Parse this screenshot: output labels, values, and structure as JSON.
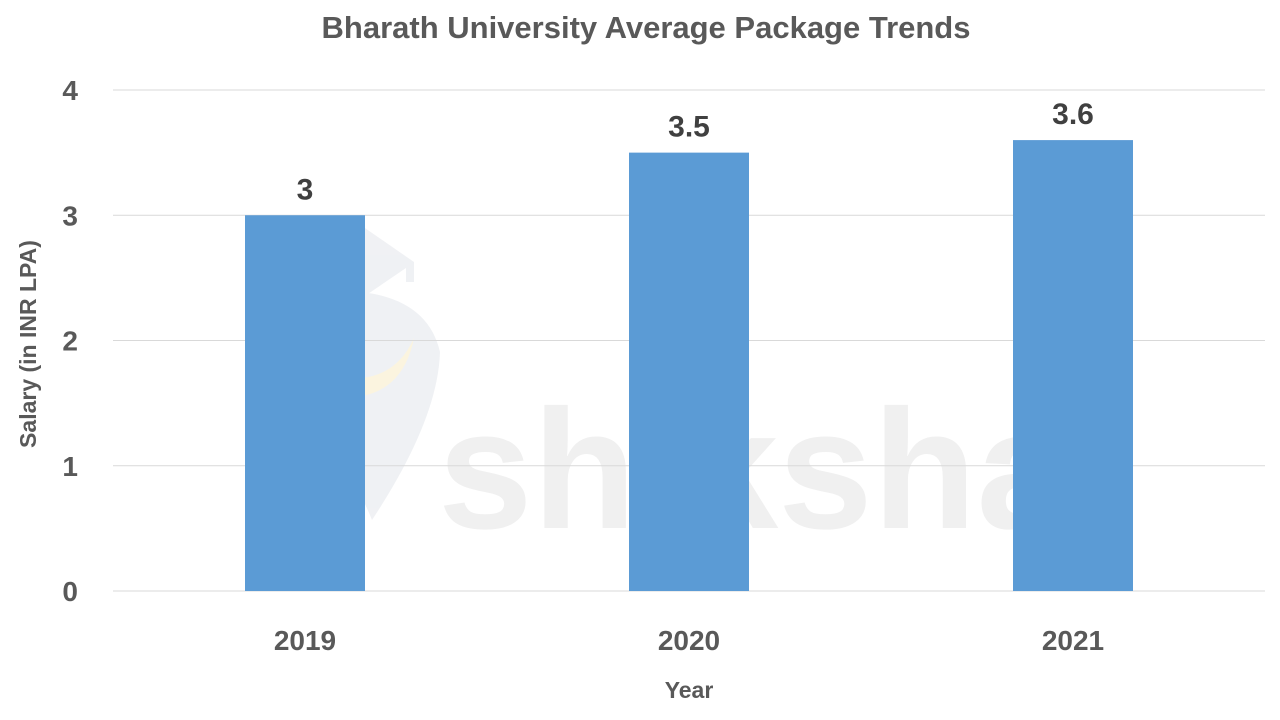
{
  "chart_data": {
    "type": "bar",
    "title": "Bharath University Average Package Trends",
    "xlabel": "Year",
    "ylabel": "Salary (in INR LPA)",
    "categories": [
      "2019",
      "2020",
      "2021"
    ],
    "values": [
      3,
      3.5,
      3.6
    ],
    "data_labels": [
      "3",
      "3.5",
      "3.6"
    ],
    "ylim": [
      0,
      4
    ],
    "yticks": [
      0,
      1,
      2,
      3,
      4
    ],
    "grid": true,
    "legend": "none",
    "bar_color": "#5b9bd5"
  },
  "watermark": {
    "text": "shiksha"
  }
}
